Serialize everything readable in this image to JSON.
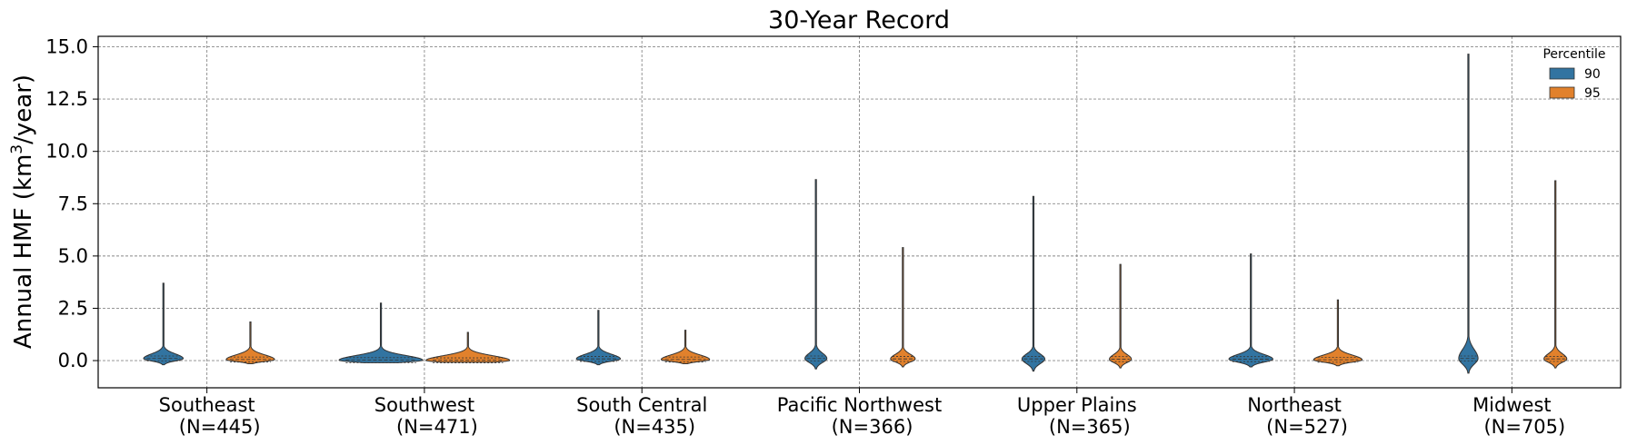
{
  "chart_data": {
    "type": "violin",
    "title": "30-Year Record",
    "ylabel_main": "Annual HMF (km",
    "ylabel_sup": "3",
    "ylabel_tail": "/year)",
    "xlabel": "",
    "ylim": [
      -1.3,
      15.5
    ],
    "yticks": [
      0.0,
      2.5,
      5.0,
      7.5,
      10.0,
      12.5,
      15.0
    ],
    "ytick_labels": [
      "0.0",
      "2.5",
      "5.0",
      "7.5",
      "10.0",
      "12.5",
      "15.0"
    ],
    "grid": true,
    "legend": {
      "title": "Percentile",
      "placement": "top-right",
      "entries": [
        "90",
        "95"
      ]
    },
    "colors": {
      "90": "#3274a1",
      "95": "#e1812c"
    },
    "categories": [
      {
        "name": "Southeast",
        "n": "(N=445)"
      },
      {
        "name": "Southwest",
        "n": "(N=471)"
      },
      {
        "name": "South Central",
        "n": "(N=435)"
      },
      {
        "name": "Pacific Northwest",
        "n": "(N=366)"
      },
      {
        "name": "Upper Plains",
        "n": "(N=365)"
      },
      {
        "name": "Northeast",
        "n": "(N=527)"
      },
      {
        "name": "Midwest",
        "n": "(N=705)"
      }
    ],
    "series": [
      {
        "name": "90",
        "min": [
          -0.2,
          -0.1,
          -0.2,
          -0.4,
          -0.5,
          -0.3,
          -0.6
        ],
        "max": [
          3.7,
          2.75,
          2.4,
          8.65,
          7.85,
          5.1,
          14.65
        ],
        "median": [
          0.1,
          0.02,
          0.08,
          0.1,
          0.08,
          0.07,
          0.1
        ],
        "peak_width": [
          0.45,
          0.95,
          0.5,
          0.25,
          0.26,
          0.5,
          0.22
        ]
      },
      {
        "name": "95",
        "min": [
          -0.15,
          -0.08,
          -0.15,
          -0.3,
          -0.35,
          -0.25,
          -0.35
        ],
        "max": [
          1.85,
          1.35,
          1.45,
          5.4,
          4.6,
          2.9,
          8.6
        ],
        "median": [
          0.05,
          0.01,
          0.05,
          0.08,
          0.07,
          0.04,
          0.08
        ],
        "peak_width": [
          0.55,
          0.95,
          0.55,
          0.28,
          0.25,
          0.55,
          0.26
        ]
      }
    ]
  }
}
